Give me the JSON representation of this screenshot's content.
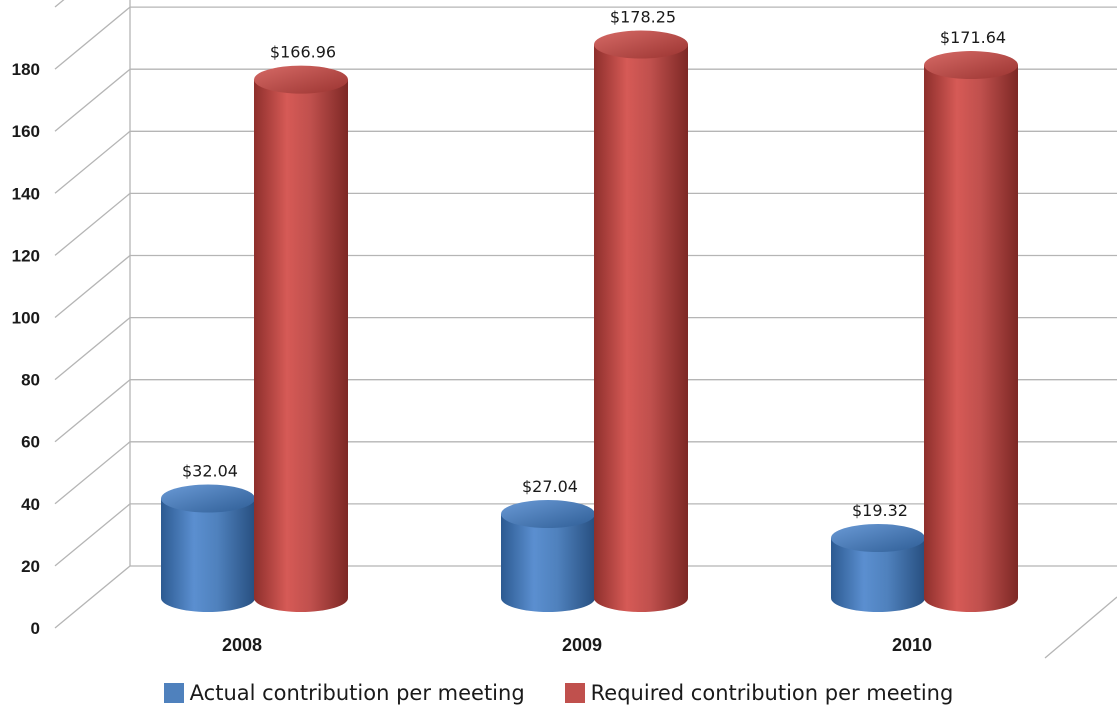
{
  "chart_data": {
    "type": "bar",
    "categories": [
      "2008",
      "2009",
      "2010"
    ],
    "series": [
      {
        "name": "Actual contribution per meeting",
        "values": [
          32.04,
          27.04,
          19.32
        ],
        "labels": [
          "$32.04",
          "$27.04",
          "$19.32"
        ],
        "color": "#4f81bd"
      },
      {
        "name": "Required contribution per meeting",
        "values": [
          166.96,
          178.25,
          171.64
        ],
        "labels": [
          "$166.96",
          "$178.25",
          "$171.64"
        ],
        "color": "#c0504d"
      }
    ],
    "y_ticks": [
      "0",
      "20",
      "40",
      "60",
      "80",
      "100",
      "120",
      "140",
      "160",
      "180"
    ],
    "ylim": [
      0,
      180
    ],
    "grid": true,
    "legend_position": "bottom",
    "style": "3d-cylinder",
    "title": "",
    "xlabel": "",
    "ylabel": ""
  }
}
